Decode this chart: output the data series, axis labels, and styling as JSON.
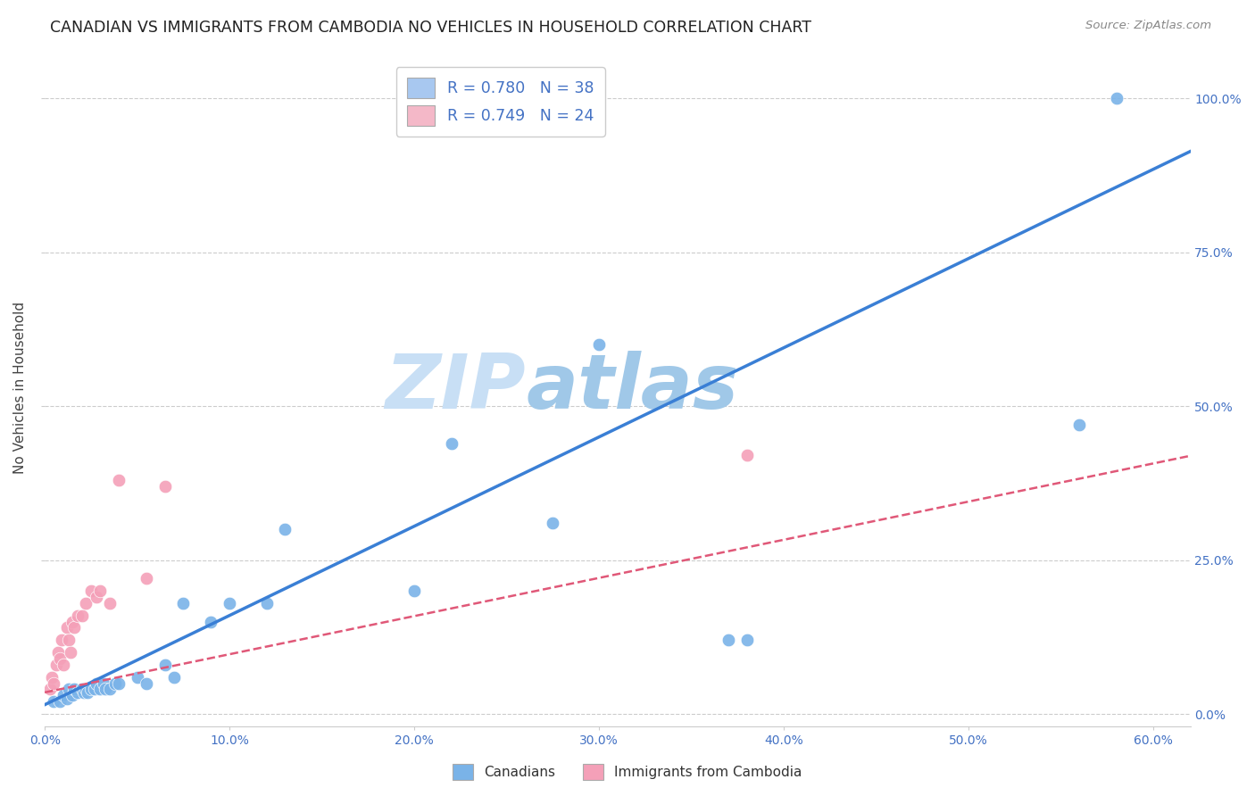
{
  "title": "CANADIAN VS IMMIGRANTS FROM CAMBODIA NO VEHICLES IN HOUSEHOLD CORRELATION CHART",
  "source": "Source: ZipAtlas.com",
  "ylabel": "No Vehicles in Household",
  "xlim": [
    0.0,
    0.62
  ],
  "ylim": [
    -0.02,
    1.08
  ],
  "watermark_part1": "ZIP",
  "watermark_part2": "atlas",
  "legend_entries": [
    {
      "label": "R = 0.780   N = 38",
      "color": "#a8c8f0"
    },
    {
      "label": "R = 0.749   N = 24",
      "color": "#f4b8c8"
    }
  ],
  "canadians": {
    "color": "#7ab3e8",
    "line_color": "#3a7fd5",
    "x": [
      0.005,
      0.008,
      0.01,
      0.012,
      0.013,
      0.015,
      0.016,
      0.018,
      0.02,
      0.021,
      0.022,
      0.023,
      0.025,
      0.027,
      0.028,
      0.03,
      0.032,
      0.033,
      0.035,
      0.038,
      0.04,
      0.05,
      0.055,
      0.065,
      0.07,
      0.075,
      0.09,
      0.1,
      0.12,
      0.13,
      0.2,
      0.22,
      0.275,
      0.3,
      0.37,
      0.38,
      0.56,
      0.58
    ],
    "y": [
      0.02,
      0.02,
      0.03,
      0.025,
      0.04,
      0.03,
      0.04,
      0.035,
      0.04,
      0.035,
      0.04,
      0.035,
      0.04,
      0.04,
      0.05,
      0.04,
      0.05,
      0.04,
      0.04,
      0.05,
      0.05,
      0.06,
      0.05,
      0.08,
      0.06,
      0.18,
      0.15,
      0.18,
      0.18,
      0.3,
      0.2,
      0.44,
      0.31,
      0.6,
      0.12,
      0.12,
      0.47,
      1.0
    ]
  },
  "cambodians": {
    "color": "#f4a0b8",
    "line_color": "#e05878",
    "x": [
      0.003,
      0.004,
      0.005,
      0.006,
      0.007,
      0.008,
      0.009,
      0.01,
      0.012,
      0.013,
      0.014,
      0.015,
      0.016,
      0.018,
      0.02,
      0.022,
      0.025,
      0.028,
      0.03,
      0.035,
      0.04,
      0.055,
      0.065,
      0.38
    ],
    "y": [
      0.04,
      0.06,
      0.05,
      0.08,
      0.1,
      0.09,
      0.12,
      0.08,
      0.14,
      0.12,
      0.1,
      0.15,
      0.14,
      0.16,
      0.16,
      0.18,
      0.2,
      0.19,
      0.2,
      0.18,
      0.38,
      0.22,
      0.37,
      0.42
    ]
  },
  "title_color": "#222222",
  "axis_color": "#4472c4",
  "background_color": "#ffffff",
  "grid_color": "#cccccc"
}
